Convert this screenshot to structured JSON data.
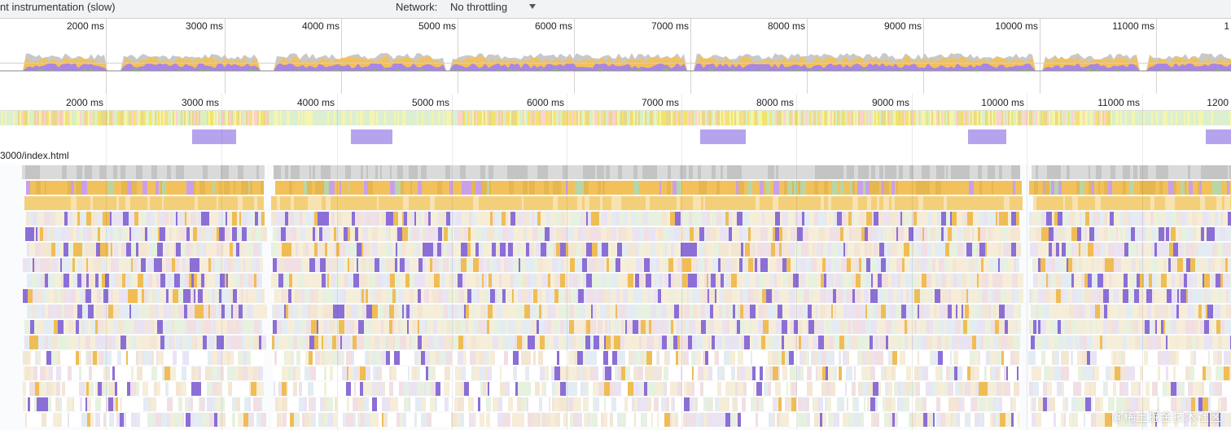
{
  "toolbar": {
    "cpu_throttling": "nt instrumentation (slow)",
    "network_label": "Network:",
    "network_value": "No throttling"
  },
  "overview_ruler": [
    "2000 ms",
    "3000 ms",
    "4000 ms",
    "5000 ms",
    "6000 ms",
    "7000 ms",
    "8000 ms",
    "9000 ms",
    "10000 ms",
    "11000 ms",
    "1"
  ],
  "main_ruler": [
    "2000 ms",
    "3000 ms",
    "4000 ms",
    "5000 ms",
    "6000 ms",
    "7000 ms",
    "8000 ms",
    "9000 ms",
    "10000 ms",
    "11000 ms",
    "1200"
  ],
  "thread_label": "3000/index.html",
  "watermark": "@稀土掘金技术社区",
  "colors": {
    "scripting": "#f2c15c",
    "rendering": "#a886e6",
    "painting": "#7fbf6a",
    "system": "#c8c8c8",
    "interaction": "#b5a3ed"
  },
  "interaction_count": 5
}
